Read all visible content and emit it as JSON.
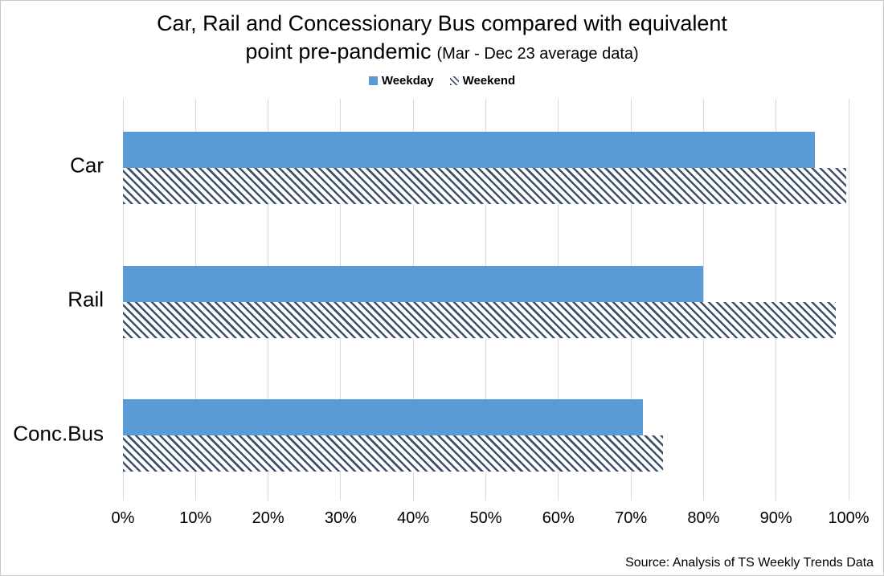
{
  "title": {
    "line1": "Car, Rail and Concessionary Bus compared with equivalent",
    "line2_main": "point pre-pandemic",
    "line2_note": "(Mar - Dec 23 average data)"
  },
  "legend": [
    {
      "label": "Weekday",
      "swatch": "solid",
      "color": "#5b9bd5"
    },
    {
      "label": "Weekend",
      "swatch": "hatch",
      "color": "#44546a"
    }
  ],
  "source": "Source: Analysis of TS Weekly Trends Data",
  "colors": {
    "weekday_bar": "#5b9bd5",
    "weekend_hatch": "#44546a",
    "gridline": "#d9d9d9",
    "frame_border": "#c8c8c8",
    "text": "#000000"
  },
  "chart_data": {
    "type": "bar",
    "orientation": "horizontal",
    "title": "Car, Rail and Concessionary Bus compared with equivalent point pre-pandemic (Mar - Dec 23 average data)",
    "categories": [
      "Car",
      "Rail",
      "Conc.Bus"
    ],
    "series": [
      {
        "name": "Weekday",
        "style": "solid",
        "color": "#5b9bd5",
        "values": [
          95.3,
          80.0,
          71.6
        ]
      },
      {
        "name": "Weekend",
        "style": "hatch",
        "color": "#44546a",
        "values": [
          99.7,
          98.2,
          74.4
        ]
      }
    ],
    "x_axis": {
      "min": 0,
      "max": 100,
      "tick_step": 10,
      "tick_labels": [
        "0%",
        "10%",
        "20%",
        "30%",
        "40%",
        "50%",
        "60%",
        "70%",
        "80%",
        "90%",
        "100%"
      ],
      "format": "percent"
    },
    "xlabel": "",
    "ylabel": "",
    "grid": "vertical",
    "legend_position": "top",
    "source_note": "Source: Analysis of TS Weekly Trends Data"
  }
}
